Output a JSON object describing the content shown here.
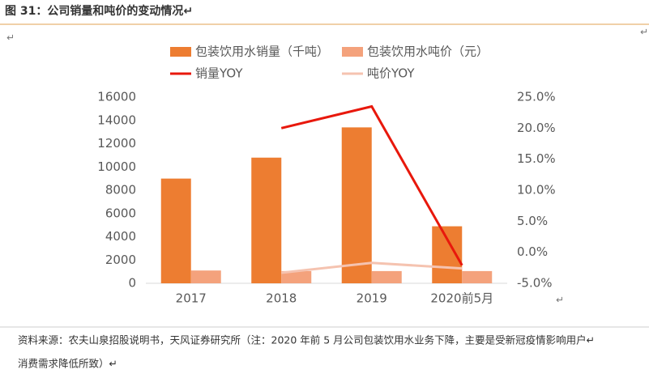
{
  "header": {
    "title": "图 31：公司销量和吨价的变动情况↵"
  },
  "paragraph_mark": "↵",
  "source": {
    "lines": [
      "资料来源：农夫山泉招股说明书，天风证券研究所（注：2020 年前 5 月公司包装饮用水业务下降，主要是受新冠疫情影响用户↵",
      "消费需求降低所致）↵"
    ]
  },
  "chart_data": {
    "type": "bar",
    "categories": [
      "2017",
      "2018",
      "2019",
      "2020前5月"
    ],
    "series": [
      {
        "name": "包装饮用水销量（千吨）",
        "type": "bar",
        "color": "#ed7d31",
        "values": [
          9000,
          10800,
          13400,
          4900
        ]
      },
      {
        "name": "包装饮用水吨价（元）",
        "type": "bar",
        "color": "#f4a27c",
        "values": [
          1100,
          1050,
          1050,
          1050
        ]
      },
      {
        "name": "销量YOY",
        "type": "line",
        "axis": "y2",
        "color": "#e8180c",
        "values": [
          null,
          20.0,
          23.5,
          -2.1
        ]
      },
      {
        "name": "吨价YOY",
        "type": "line",
        "axis": "y2",
        "color": "#f5c3b0",
        "values": [
          null,
          -3.3,
          -1.7,
          -2.6
        ]
      }
    ],
    "ylim": [
      0,
      16000
    ],
    "yticks": [
      0,
      2000,
      4000,
      6000,
      8000,
      10000,
      12000,
      14000,
      16000
    ],
    "y2lim": [
      -5,
      25
    ],
    "y2ticks": [
      {
        "value": -5,
        "label": "-5.0%"
      },
      {
        "value": 0,
        "label": "0.0%"
      },
      {
        "value": 5,
        "label": "5.0%"
      },
      {
        "value": 10,
        "label": "10.0%"
      },
      {
        "value": 15,
        "label": "15.0%"
      },
      {
        "value": 20,
        "label": "20.0%"
      },
      {
        "value": 25,
        "label": "25.0%"
      }
    ]
  }
}
